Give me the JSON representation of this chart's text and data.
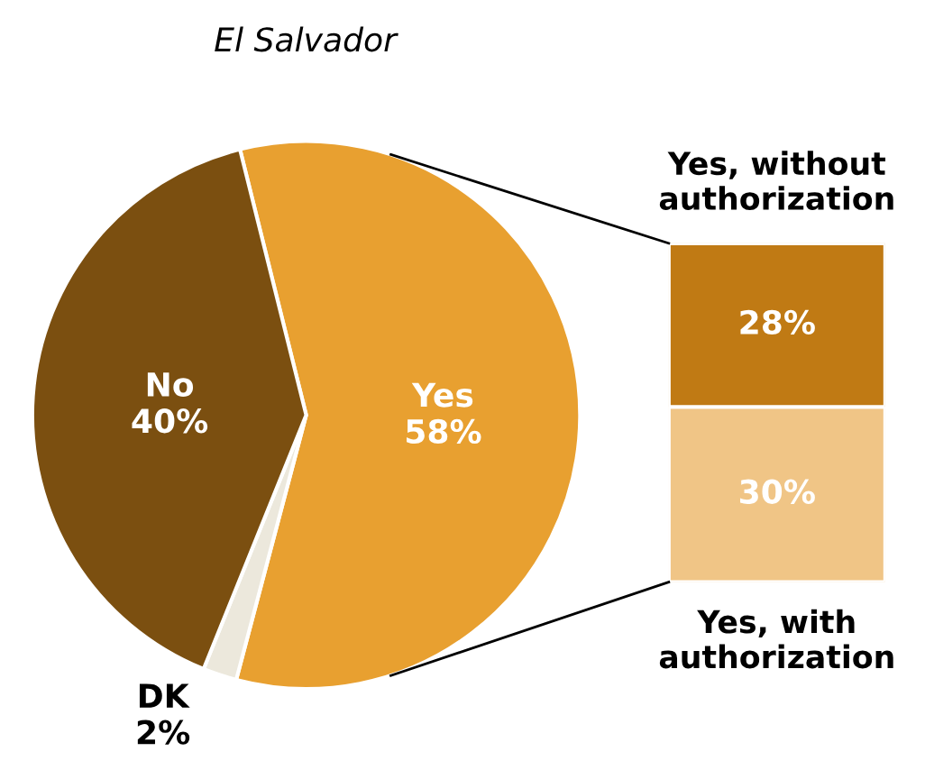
{
  "chart_data": [
    {
      "type": "pie",
      "title": "El Salvador",
      "categories": [
        "Yes",
        "DK",
        "No"
      ],
      "values": [
        58,
        2,
        40
      ],
      "colors": [
        "#e8a030",
        "#ece8dc",
        "#7b4f10"
      ],
      "value_labels": [
        "58%",
        "2%",
        "40%"
      ]
    },
    {
      "type": "bar",
      "stacked": true,
      "categories": [
        null
      ],
      "series": [
        {
          "name": "Yes, with authorization",
          "color": "#f0c586",
          "values": [
            30
          ],
          "value_labels": [
            "30%"
          ]
        },
        {
          "name": "Yes, without authorization",
          "color": "#c07a14",
          "values": [
            28
          ],
          "value_labels": [
            "28%"
          ]
        }
      ]
    }
  ]
}
